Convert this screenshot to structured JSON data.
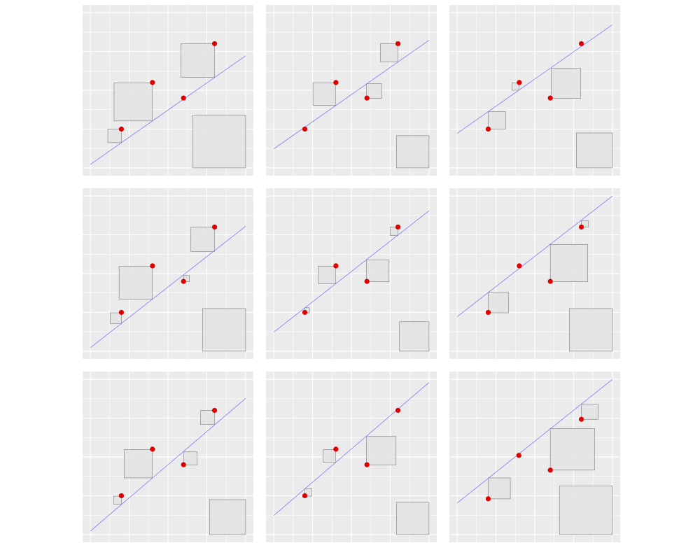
{
  "chart_data": [
    {
      "type": "scatter",
      "xlim": [
        -0.2,
        4.2
      ],
      "ylim": [
        -0.2,
        4.2
      ],
      "xticks": [
        0,
        1,
        2,
        3,
        4
      ],
      "yticks": [
        0,
        1,
        2,
        3,
        4
      ],
      "minor_xticks": [
        0.5,
        1.5,
        2.5,
        3.5
      ],
      "minor_yticks": [
        0.5,
        1.5,
        2.5,
        3.5
      ],
      "grid": true,
      "point_color": "#e00000",
      "line_color": "#7b7bff",
      "square_color": "#e3e3e3",
      "x": [
        0.8,
        1.6,
        2.4,
        3.2
      ],
      "y": [
        1.0,
        2.2,
        1.8,
        3.2
      ],
      "line": {
        "x": [
          0,
          4
        ],
        "y": [
          0.09,
          2.89
        ]
      },
      "squares": [
        {
          "x": [
            0.45,
            0.8
          ],
          "y": [
            0.65,
            1.0
          ]
        },
        {
          "x": [
            0.61,
            1.59
          ],
          "y": [
            1.21,
            2.19
          ]
        },
        {
          "x": [
            2.33,
            3.2
          ],
          "y": [
            2.33,
            3.2
          ]
        },
        {
          "x": [
            2.64,
            4.0
          ],
          "y": [
            0,
            1.36
          ]
        }
      ]
    },
    {
      "type": "scatter",
      "xlim": [
        -0.2,
        4.2
      ],
      "ylim": [
        -0.2,
        4.2
      ],
      "xticks": [
        0,
        1,
        2,
        3,
        4
      ],
      "yticks": [
        0,
        1,
        2,
        3,
        4
      ],
      "minor_xticks": [
        0.5,
        1.5,
        2.5,
        3.5
      ],
      "minor_yticks": [
        0.5,
        1.5,
        2.5,
        3.5
      ],
      "grid": true,
      "point_color": "#e00000",
      "line_color": "#7b7bff",
      "square_color": "#e3e3e3",
      "x": [
        0.8,
        1.6,
        2.4,
        3.2
      ],
      "y": [
        1.0,
        2.2,
        1.8,
        3.2
      ],
      "line": {
        "x": [
          0,
          4
        ],
        "y": [
          0.49,
          3.29
        ]
      },
      "squares": [
        {
          "x": [
            1.01,
            1.59
          ],
          "y": [
            1.61,
            2.19
          ]
        },
        {
          "x": [
            2.39,
            2.78
          ],
          "y": [
            1.79,
            2.17
          ]
        },
        {
          "x": [
            2.75,
            3.2
          ],
          "y": [
            2.73,
            3.2
          ]
        },
        {
          "x": [
            3.16,
            4.0
          ],
          "y": [
            0,
            0.83
          ]
        }
      ]
    },
    {
      "type": "scatter",
      "xlim": [
        -0.2,
        4.2
      ],
      "ylim": [
        -0.2,
        4.2
      ],
      "xticks": [
        0,
        1,
        2,
        3,
        4
      ],
      "yticks": [
        0,
        1,
        2,
        3,
        4
      ],
      "minor_xticks": [
        0.5,
        1.5,
        2.5,
        3.5
      ],
      "minor_yticks": [
        0.5,
        1.5,
        2.5,
        3.5
      ],
      "grid": true,
      "point_color": "#e00000",
      "line_color": "#7b7bff",
      "square_color": "#e3e3e3",
      "x": [
        0.8,
        1.6,
        2.4,
        3.2
      ],
      "y": [
        1.0,
        2.2,
        1.8,
        3.2
      ],
      "line": {
        "x": [
          0,
          4
        ],
        "y": [
          0.89,
          3.69
        ]
      },
      "squares": [
        {
          "x": [
            0.8,
            1.25
          ],
          "y": [
            1.0,
            1.45
          ]
        },
        {
          "x": [
            1.41,
            1.59
          ],
          "y": [
            2.0,
            2.19
          ]
        },
        {
          "x": [
            2.42,
            3.18
          ],
          "y": [
            1.79,
            2.57
          ]
        },
        {
          "x": [
            3.07,
            4.0
          ],
          "y": [
            0,
            0.9
          ]
        }
      ]
    },
    {
      "type": "scatter",
      "xlim": [
        -0.2,
        4.2
      ],
      "ylim": [
        -0.2,
        4.2
      ],
      "xticks": [
        0,
        1,
        2,
        3,
        4
      ],
      "yticks": [
        0,
        1,
        2,
        3,
        4
      ],
      "minor_xticks": [
        0.5,
        1.5,
        2.5,
        3.5
      ],
      "minor_yticks": [
        0.5,
        1.5,
        2.5,
        3.5
      ],
      "grid": true,
      "point_color": "#e00000",
      "line_color": "#7b7bff",
      "square_color": "#e3e3e3",
      "x": [
        0.8,
        1.6,
        2.4,
        3.2
      ],
      "y": [
        1.0,
        2.2,
        1.8,
        3.2
      ],
      "line": {
        "x": [
          0,
          4
        ],
        "y": [
          0.09,
          3.22
        ]
      },
      "squares": [
        {
          "x": [
            0.51,
            0.8
          ],
          "y": [
            0.71,
            0.99
          ]
        },
        {
          "x": [
            0.74,
            1.59
          ],
          "y": [
            1.34,
            2.19
          ]
        },
        {
          "x": [
            2.4,
            2.55
          ],
          "y": [
            1.79,
            1.95
          ]
        },
        {
          "x": [
            2.59,
            3.2
          ],
          "y": [
            2.57,
            3.2
          ]
        },
        {
          "x": [
            2.89,
            4.0
          ],
          "y": [
            0,
            1.1
          ]
        }
      ]
    },
    {
      "type": "scatter",
      "xlim": [
        -0.2,
        4.2
      ],
      "ylim": [
        -0.2,
        4.2
      ],
      "xticks": [
        0,
        1,
        2,
        3,
        4
      ],
      "yticks": [
        0,
        1,
        2,
        3,
        4
      ],
      "minor_xticks": [
        0.5,
        1.5,
        2.5,
        3.5
      ],
      "minor_yticks": [
        0.5,
        1.5,
        2.5,
        3.5
      ],
      "grid": true,
      "point_color": "#e00000",
      "line_color": "#7b7bff",
      "square_color": "#e3e3e3",
      "x": [
        0.8,
        1.6,
        2.4,
        3.2
      ],
      "y": [
        1.0,
        2.2,
        1.8,
        3.2
      ],
      "line": {
        "x": [
          0,
          4
        ],
        "y": [
          0.49,
          3.62
        ]
      },
      "squares": [
        {
          "x": [
            0.8,
            0.92
          ],
          "y": [
            0.99,
            1.12
          ]
        },
        {
          "x": [
            1.14,
            1.59
          ],
          "y": [
            1.74,
            2.19
          ]
        },
        {
          "x": [
            2.39,
            2.97
          ],
          "y": [
            1.79,
            2.35
          ]
        },
        {
          "x": [
            3.0,
            3.2
          ],
          "y": [
            2.98,
            3.2
          ]
        },
        {
          "x": [
            3.24,
            4.0
          ],
          "y": [
            0,
            0.76
          ]
        }
      ]
    },
    {
      "type": "scatter",
      "xlim": [
        -0.2,
        4.2
      ],
      "ylim": [
        -0.2,
        4.2
      ],
      "xticks": [
        0,
        1,
        2,
        3,
        4
      ],
      "yticks": [
        0,
        1,
        2,
        3,
        4
      ],
      "minor_xticks": [
        0.5,
        1.5,
        2.5,
        3.5
      ],
      "minor_yticks": [
        0.5,
        1.5,
        2.5,
        3.5
      ],
      "grid": true,
      "point_color": "#e00000",
      "line_color": "#7b7bff",
      "square_color": "#e3e3e3",
      "x": [
        0.8,
        1.6,
        2.4,
        3.2
      ],
      "y": [
        1.0,
        2.2,
        1.8,
        3.2
      ],
      "line": {
        "x": [
          0,
          4
        ],
        "y": [
          0.89,
          4.0
        ]
      },
      "squares": [
        {
          "x": [
            0.8,
            1.32
          ],
          "y": [
            0.99,
            1.52
          ]
        },
        {
          "x": [
            2.4,
            3.36
          ],
          "y": [
            1.79,
            2.75
          ]
        },
        {
          "x": [
            3.2,
            3.38
          ],
          "y": [
            3.2,
            3.36
          ]
        },
        {
          "x": [
            2.89,
            4.0
          ],
          "y": [
            0,
            1.1
          ]
        }
      ]
    },
    {
      "type": "scatter",
      "xlim": [
        -0.2,
        4.2
      ],
      "ylim": [
        -0.2,
        4.2
      ],
      "xticks": [
        0,
        1,
        2,
        3,
        4
      ],
      "yticks": [
        0,
        1,
        2,
        3,
        4
      ],
      "minor_xticks": [
        0.5,
        1.5,
        2.5,
        3.5
      ],
      "minor_yticks": [
        0.5,
        1.5,
        2.5,
        3.5
      ],
      "grid": true,
      "point_color": "#e00000",
      "line_color": "#7b7bff",
      "square_color": "#e3e3e3",
      "x": [
        0.8,
        1.6,
        2.4,
        3.2
      ],
      "y": [
        1.0,
        2.2,
        1.8,
        3.2
      ],
      "line": {
        "x": [
          0,
          4
        ],
        "y": [
          0.09,
          3.51
        ]
      },
      "squares": [
        {
          "x": [
            0.6,
            0.8
          ],
          "y": [
            0.78,
            0.99
          ]
        },
        {
          "x": [
            0.87,
            1.59
          ],
          "y": [
            1.46,
            2.19
          ]
        },
        {
          "x": [
            2.4,
            2.75
          ],
          "y": [
            1.79,
            2.13
          ]
        },
        {
          "x": [
            2.84,
            3.2
          ],
          "y": [
            2.84,
            3.2
          ]
        },
        {
          "x": [
            3.07,
            4.0
          ],
          "y": [
            0,
            0.9
          ]
        }
      ]
    },
    {
      "type": "scatter",
      "xlim": [
        -0.2,
        4.2
      ],
      "ylim": [
        -0.2,
        4.2
      ],
      "xticks": [
        0,
        1,
        2,
        3,
        4
      ],
      "yticks": [
        0,
        1,
        2,
        3,
        4
      ],
      "minor_xticks": [
        0.5,
        1.5,
        2.5,
        3.5
      ],
      "minor_yticks": [
        0.5,
        1.5,
        2.5,
        3.5
      ],
      "grid": true,
      "point_color": "#e00000",
      "line_color": "#7b7bff",
      "square_color": "#e3e3e3",
      "x": [
        0.8,
        1.6,
        2.4,
        3.2
      ],
      "y": [
        1.0,
        2.2,
        1.8,
        3.2
      ],
      "line": {
        "x": [
          0,
          4
        ],
        "y": [
          0.49,
          3.92
        ]
      },
      "squares": [
        {
          "x": [
            0.8,
            0.98
          ],
          "y": [
            0.99,
            1.18
          ]
        },
        {
          "x": [
            1.27,
            1.59
          ],
          "y": [
            1.86,
            2.19
          ]
        },
        {
          "x": [
            2.39,
            3.15
          ],
          "y": [
            1.79,
            2.53
          ]
        },
        {
          "x": [
            3.16,
            4.0
          ],
          "y": [
            0,
            0.83
          ]
        }
      ]
    },
    {
      "type": "scatter",
      "xlim": [
        -0.2,
        4.2
      ],
      "ylim": [
        -0.2,
        4.2
      ],
      "xticks": [
        0,
        1,
        2,
        3,
        4
      ],
      "yticks": [
        0,
        1,
        2,
        3,
        4
      ],
      "minor_xticks": [
        0.5,
        1.5,
        2.5,
        3.5
      ],
      "minor_yticks": [
        0.5,
        1.5,
        2.5,
        3.5
      ],
      "grid": true,
      "point_color": "#e00000",
      "line_color": "#7b7bff",
      "square_color": "#e3e3e3",
      "x": [
        0.8,
        1.59,
        2.4,
        3.2
      ],
      "y": [
        0.92,
        2.04,
        1.66,
        2.97
      ],
      "line": {
        "x": [
          0,
          4
        ],
        "y": [
          0.81,
          4.0
        ]
      },
      "squares": [
        {
          "x": [
            0.8,
            1.37
          ],
          "y": [
            0.92,
            1.46
          ]
        },
        {
          "x": [
            2.4,
            3.54
          ],
          "y": [
            1.66,
            2.73
          ]
        },
        {
          "x": [
            3.2,
            3.63
          ],
          "y": [
            2.97,
            3.36
          ]
        },
        {
          "x": [
            2.64,
            4.0
          ],
          "y": [
            0,
            1.25
          ]
        }
      ]
    }
  ]
}
